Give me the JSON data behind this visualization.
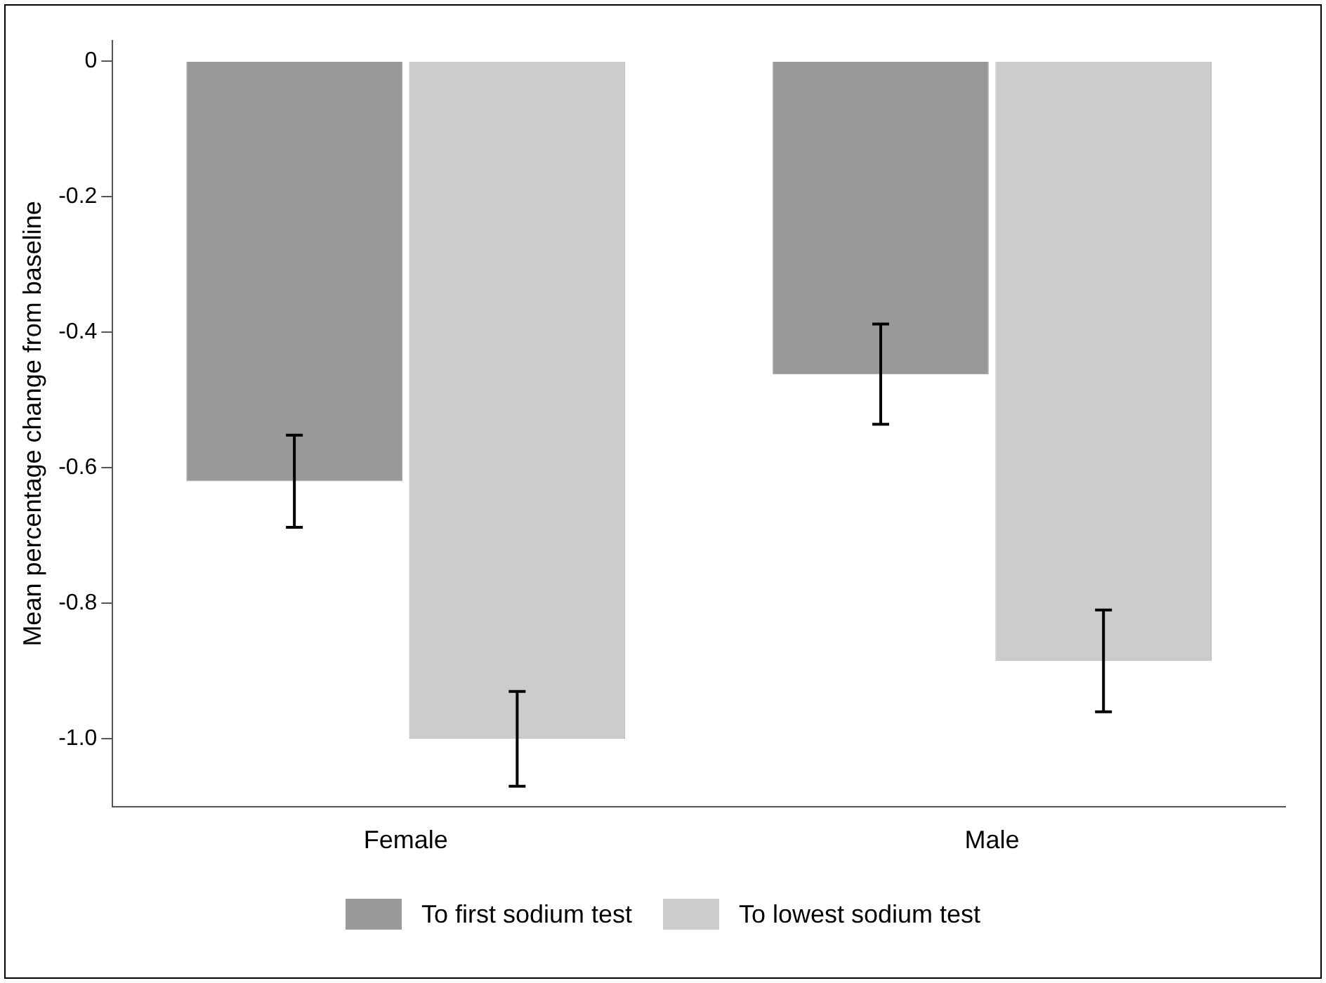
{
  "chart_data": {
    "type": "bar",
    "ylabel": "Mean percentage change from baseline",
    "categories": [
      "Female",
      "Male"
    ],
    "series": [
      {
        "name": "To first sodium test",
        "color": "#999999",
        "values": [
          -0.62,
          -0.462
        ],
        "errors": [
          0.068,
          0.074
        ]
      },
      {
        "name": "To lowest sodium test",
        "color": "#cccccc",
        "values": [
          -1.0,
          -0.885
        ],
        "errors": [
          0.07,
          0.075
        ]
      }
    ],
    "ylim": [
      -1.1,
      0.03
    ],
    "yticks": [
      {
        "value": 0,
        "label": "0"
      },
      -0.2,
      -0.4,
      -0.6,
      -0.8,
      {
        "value": -1,
        "label": "-1.0"
      }
    ],
    "grid": false,
    "legend": "bottom"
  }
}
